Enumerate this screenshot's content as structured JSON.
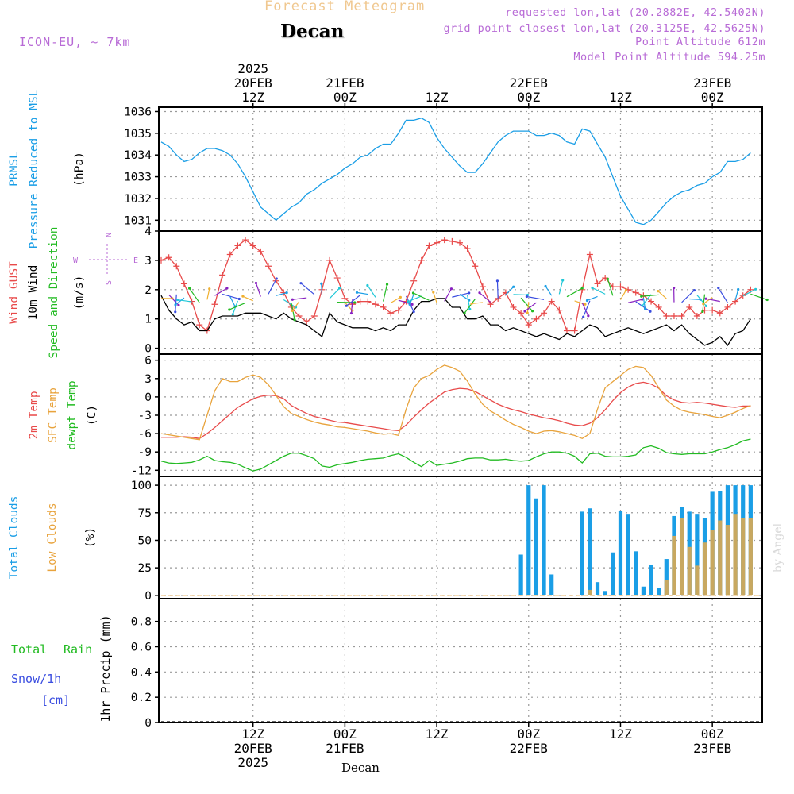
{
  "header": {
    "title": "Forecast Meteogram",
    "location": "Decan",
    "model": "ICON-EU, ~ 7km",
    "requested": "requested lon,lat (20.2882E, 42.5402N)",
    "gridpoint": "grid point closest lon,lat (20.3125E, 42.5625N)",
    "point_altitude": "Point Altitude 612m",
    "model_altitude": "Model Point Altitude 594.25m",
    "footer": "Decan",
    "watermark": "by Angel"
  },
  "chart_data": {
    "type": "line",
    "time_axis": {
      "start_hour": 0,
      "end_hour": 78,
      "note": "hour 0 = 20FEB 00Z 2025, one point every 1 hour",
      "top_ticks": [
        {
          "hour": 12,
          "lines": [
            "2025",
            "20FEB",
            "12Z"
          ]
        },
        {
          "hour": 24,
          "lines": [
            "21FEB",
            "00Z"
          ]
        },
        {
          "hour": 36,
          "lines": [
            "12Z"
          ]
        },
        {
          "hour": 48,
          "lines": [
            "22FEB",
            "00Z"
          ]
        },
        {
          "hour": 60,
          "lines": [
            "12Z"
          ]
        },
        {
          "hour": 72,
          "lines": [
            "23FEB",
            "00Z"
          ]
        }
      ],
      "bottom_ticks": [
        {
          "hour": 12,
          "lines": [
            "12Z",
            "20FEB",
            "2025"
          ]
        },
        {
          "hour": 24,
          "lines": [
            "00Z",
            "21FEB"
          ]
        },
        {
          "hour": 36,
          "lines": [
            "12Z"
          ]
        },
        {
          "hour": 48,
          "lines": [
            "00Z",
            "22FEB"
          ]
        },
        {
          "hour": 60,
          "lines": [
            "12Z"
          ]
        },
        {
          "hour": 72,
          "lines": [
            "00Z",
            "23FEB"
          ]
        }
      ]
    },
    "panels": [
      {
        "id": "pressure",
        "ylim": [
          1030.5,
          1036.2
        ],
        "yticks": [
          1031,
          1032,
          1033,
          1034,
          1035,
          1036
        ],
        "labels": [
          {
            "text": "PRMSL",
            "color": "#1a9ee6"
          },
          {
            "text": "Pressure Reduced to MSL",
            "color": "#1a9ee6"
          },
          {
            "text": "(hPa)",
            "color": "#000000"
          }
        ],
        "series": [
          {
            "name": "PRMSL",
            "color": "#1a9ee6",
            "values": [
              1034.6,
              1034.4,
              1034.0,
              1033.7,
              1033.8,
              1034.1,
              1034.3,
              1034.3,
              1034.2,
              1034.0,
              1033.6,
              1033.0,
              1032.3,
              1031.6,
              1031.3,
              1031.0,
              1031.3,
              1031.6,
              1031.8,
              1032.2,
              1032.4,
              1032.7,
              1032.9,
              1033.1,
              1033.4,
              1033.6,
              1033.9,
              1034.0,
              1034.3,
              1034.5,
              1034.5,
              1035.0,
              1035.6,
              1035.6,
              1035.7,
              1035.5,
              1034.8,
              1034.3,
              1033.9,
              1033.5,
              1033.2,
              1033.2,
              1033.6,
              1034.1,
              1034.6,
              1034.9,
              1035.1,
              1035.1,
              1035.1,
              1034.9,
              1034.9,
              1035.0,
              1034.9,
              1034.6,
              1034.5,
              1035.2,
              1035.1,
              1034.5,
              1033.9,
              1033.0,
              1032.1,
              1031.5,
              1030.9,
              1030.8,
              1031.0,
              1031.4,
              1031.8,
              1032.1,
              1032.3,
              1032.4,
              1032.6,
              1032.7,
              1033.0,
              1033.2,
              1033.7,
              1033.7,
              1033.8,
              1034.1
            ]
          }
        ]
      },
      {
        "id": "wind",
        "ylim": [
          -0.2,
          4.0
        ],
        "yticks": [
          0,
          1,
          2,
          3,
          4
        ],
        "labels": [
          {
            "text": "Wind GUST",
            "color": "#e84a4a"
          },
          {
            "text": "10m Wind",
            "color": "#000000"
          },
          {
            "text": "Speed and Direction",
            "color": "#22bb22"
          },
          {
            "text": "(m/s)",
            "color": "#000000"
          }
        ],
        "compass": {
          "n": "N",
          "s": "S",
          "w": "W",
          "e": "E",
          "color": "#b86bd6"
        },
        "series": [
          {
            "name": "Wind GUST",
            "color": "#e84a4a",
            "marker": "+",
            "values": [
              3.0,
              3.1,
              2.8,
              2.2,
              1.6,
              0.8,
              0.6,
              1.5,
              2.5,
              3.2,
              3.5,
              3.7,
              3.5,
              3.3,
              2.8,
              2.3,
              1.9,
              1.4,
              1.1,
              0.9,
              1.1,
              2.0,
              3.0,
              2.4,
              1.7,
              1.5,
              1.6,
              1.6,
              1.5,
              1.4,
              1.2,
              1.3,
              1.6,
              2.3,
              3.0,
              3.5,
              3.6,
              3.7,
              3.65,
              3.6,
              3.4,
              2.8,
              2.1,
              1.5,
              1.7,
              1.9,
              1.4,
              1.2,
              0.8,
              1.0,
              1.2,
              1.6,
              1.3,
              0.6,
              0.6,
              2.0,
              3.2,
              2.2,
              2.4,
              2.1,
              2.1,
              2.0,
              1.9,
              1.8,
              1.6,
              1.4,
              1.1,
              1.1,
              1.1,
              1.4,
              1.1,
              1.3,
              1.3,
              1.2,
              1.4,
              1.6,
              1.8,
              2.0
            ]
          },
          {
            "name": "10m Wind",
            "color": "#000000",
            "values": [
              1.8,
              1.3,
              1.0,
              0.8,
              0.9,
              0.6,
              0.6,
              1.0,
              1.1,
              1.1,
              1.1,
              1.2,
              1.2,
              1.2,
              1.1,
              1.0,
              1.2,
              1.0,
              0.9,
              0.8,
              0.6,
              0.4,
              1.2,
              0.9,
              0.8,
              0.7,
              0.7,
              0.7,
              0.6,
              0.7,
              0.6,
              0.8,
              0.8,
              1.3,
              1.6,
              1.6,
              1.7,
              1.7,
              1.4,
              1.4,
              1.0,
              1.0,
              1.1,
              0.8,
              0.8,
              0.6,
              0.7,
              0.6,
              0.5,
              0.4,
              0.5,
              0.4,
              0.3,
              0.5,
              0.4,
              0.6,
              0.8,
              0.7,
              0.4,
              0.5,
              0.6,
              0.7,
              0.6,
              0.5,
              0.6,
              0.7,
              0.8,
              0.6,
              0.8,
              0.5,
              0.3,
              0.1,
              0.2,
              0.4,
              0.1,
              0.5,
              0.6,
              1.0
            ]
          }
        ]
      },
      {
        "id": "temperature",
        "ylim": [
          -13.0,
          7.0
        ],
        "yticks": [
          -12,
          -9,
          -6,
          -3,
          0,
          3,
          6
        ],
        "labels": [
          {
            "text": "2m Temp",
            "color": "#e84a4a"
          },
          {
            "text": "SFC Temp",
            "color": "#e8a33c"
          },
          {
            "text": "dewpt Temp",
            "color": "#22bb22"
          },
          {
            "text": "(C)",
            "color": "#000000"
          }
        ],
        "series": [
          {
            "name": "2m Temp",
            "color": "#e84a4a",
            "values": [
              -6.6,
              -6.6,
              -6.6,
              -6.5,
              -6.6,
              -6.8,
              -6.0,
              -5.0,
              -3.9,
              -2.8,
              -1.7,
              -1.0,
              -0.3,
              0.1,
              0.3,
              0.2,
              -0.3,
              -1.4,
              -2.1,
              -2.7,
              -3.2,
              -3.5,
              -3.8,
              -4.1,
              -4.2,
              -4.4,
              -4.6,
              -4.8,
              -5.0,
              -5.2,
              -5.4,
              -5.5,
              -4.6,
              -3.3,
              -2.1,
              -1.0,
              -0.1,
              0.8,
              1.2,
              1.4,
              1.3,
              0.9,
              0.2,
              -0.5,
              -1.2,
              -1.7,
              -2.1,
              -2.4,
              -2.8,
              -3.1,
              -3.4,
              -3.6,
              -3.9,
              -4.3,
              -4.6,
              -4.7,
              -4.3,
              -3.4,
              -2.1,
              -0.6,
              0.7,
              1.6,
              2.2,
              2.4,
              2.1,
              1.4,
              0.2,
              -0.5,
              -0.9,
              -1.0,
              -0.9,
              -1.0,
              -1.2,
              -1.4,
              -1.6,
              -1.7,
              -1.5,
              -1.5
            ]
          },
          {
            "name": "SFC Temp",
            "color": "#e8a33c",
            "values": [
              -6.0,
              -6.2,
              -6.4,
              -6.6,
              -6.8,
              -7.0,
              -3.0,
              1.0,
              3.0,
              2.5,
              2.5,
              3.2,
              3.6,
              3.2,
              2.0,
              0.3,
              -1.6,
              -2.7,
              -3.2,
              -3.7,
              -4.1,
              -4.4,
              -4.6,
              -4.9,
              -5.0,
              -5.2,
              -5.4,
              -5.6,
              -5.9,
              -6.1,
              -6.0,
              -6.3,
              -2.0,
              1.5,
              3.0,
              3.5,
              4.5,
              5.2,
              4.8,
              4.2,
              2.6,
              0.5,
              -1.2,
              -2.3,
              -3.0,
              -3.8,
              -4.5,
              -5.0,
              -5.6,
              -6.0,
              -5.6,
              -5.5,
              -5.7,
              -6.0,
              -6.3,
              -6.8,
              -6.0,
              -2.0,
              1.5,
              2.5,
              3.5,
              4.5,
              5.0,
              4.8,
              3.5,
              1.5,
              -0.5,
              -1.5,
              -2.2,
              -2.5,
              -2.7,
              -2.9,
              -3.2,
              -3.4,
              -3.0,
              -2.5,
              -1.9,
              -1.4
            ]
          },
          {
            "name": "dewpt Temp",
            "color": "#22bb22",
            "values": [
              -10.5,
              -10.8,
              -10.9,
              -10.8,
              -10.7,
              -10.3,
              -9.7,
              -10.4,
              -10.6,
              -10.7,
              -11.0,
              -11.6,
              -12.1,
              -11.8,
              -11.1,
              -10.4,
              -9.7,
              -9.2,
              -9.2,
              -9.6,
              -10.1,
              -11.3,
              -11.5,
              -11.1,
              -10.9,
              -10.7,
              -10.4,
              -10.2,
              -10.1,
              -10.0,
              -9.6,
              -9.3,
              -9.9,
              -10.7,
              -11.4,
              -10.4,
              -11.2,
              -11.0,
              -10.8,
              -10.5,
              -10.1,
              -10.0,
              -10.0,
              -10.3,
              -10.3,
              -10.2,
              -10.4,
              -10.5,
              -10.4,
              -9.8,
              -9.3,
              -9.0,
              -9.0,
              -9.2,
              -9.7,
              -10.8,
              -9.3,
              -9.2,
              -9.7,
              -9.8,
              -9.8,
              -9.7,
              -9.5,
              -8.3,
              -8.0,
              -8.4,
              -9.1,
              -9.3,
              -9.4,
              -9.3,
              -9.3,
              -9.3,
              -9.0,
              -8.6,
              -8.3,
              -7.8,
              -7.2,
              -6.9
            ]
          }
        ]
      },
      {
        "id": "clouds",
        "type": "bar",
        "ylim": [
          -3,
          108
        ],
        "yticks": [
          0,
          25,
          50,
          75,
          100
        ],
        "labels": [
          {
            "text": "Total Clouds",
            "color": "#1a9ee6"
          },
          {
            "text": "Low Clouds",
            "color": "#e8a33c"
          },
          {
            "text": "(%)",
            "color": "#000000"
          }
        ],
        "series": [
          {
            "name": "Total Clouds",
            "color": "#1a9ee6",
            "values": [
              0,
              0,
              0,
              0,
              0,
              0,
              0,
              0,
              0,
              0,
              0,
              0,
              0,
              0,
              0,
              0,
              0,
              0,
              0,
              0,
              0,
              0,
              0,
              0,
              0,
              0,
              0,
              0,
              0,
              0,
              0,
              0,
              0,
              0,
              0,
              0,
              0,
              0,
              0,
              0,
              0,
              0,
              0,
              0,
              0,
              0,
              0,
              37,
              100,
              88,
              100,
              19,
              0,
              0,
              0,
              76,
              79,
              12,
              4,
              39,
              77,
              74,
              40,
              8,
              28,
              7,
              33,
              72,
              80,
              76,
              74,
              70,
              94,
              95,
              100,
              100,
              100,
              100
            ]
          },
          {
            "name": "Low Clouds",
            "color": "#c8a860",
            "values": [
              0,
              0,
              0,
              0,
              0,
              0,
              0,
              0,
              0,
              0,
              0,
              0,
              0,
              0,
              0,
              0,
              0,
              0,
              0,
              0,
              0,
              0,
              0,
              0,
              0,
              0,
              0,
              0,
              0,
              0,
              0,
              0,
              0,
              0,
              0,
              0,
              0,
              0,
              0,
              0,
              0,
              0,
              0,
              0,
              0,
              0,
              0,
              0,
              0,
              0,
              0,
              0,
              0,
              0,
              0,
              0,
              5,
              0,
              0,
              0,
              0,
              0,
              0,
              0,
              0,
              0,
              14,
              54,
              70,
              44,
              27,
              48,
              59,
              68,
              64,
              74,
              70,
              70
            ]
          }
        ]
      },
      {
        "id": "precip",
        "ylim": [
          0,
          0.98
        ],
        "yticks": [
          0,
          0.2,
          0.4,
          0.6,
          0.8
        ],
        "ytick_labels": [
          "0",
          "0.2",
          "0.4",
          "0.6",
          "0.8"
        ],
        "labels": [
          {
            "text": "Total",
            "color": "#22bb22"
          },
          {
            "text": "Rain",
            "color": "#22bb22"
          },
          {
            "text": "Snow/1h",
            "color": "#3b4ee0"
          },
          {
            "text": "[cm]",
            "color": "#3b4ee0"
          },
          {
            "text": "1hr Precip (mm)",
            "color": "#000000"
          }
        ],
        "series": [
          {
            "name": "Total",
            "color": "#22bb22",
            "values": [
              0
            ]
          },
          {
            "name": "Rain",
            "color": "#22bb22",
            "values": [
              0
            ]
          },
          {
            "name": "Snow/1h",
            "color": "#3b4ee0",
            "values": [
              0
            ]
          }
        ]
      }
    ]
  }
}
